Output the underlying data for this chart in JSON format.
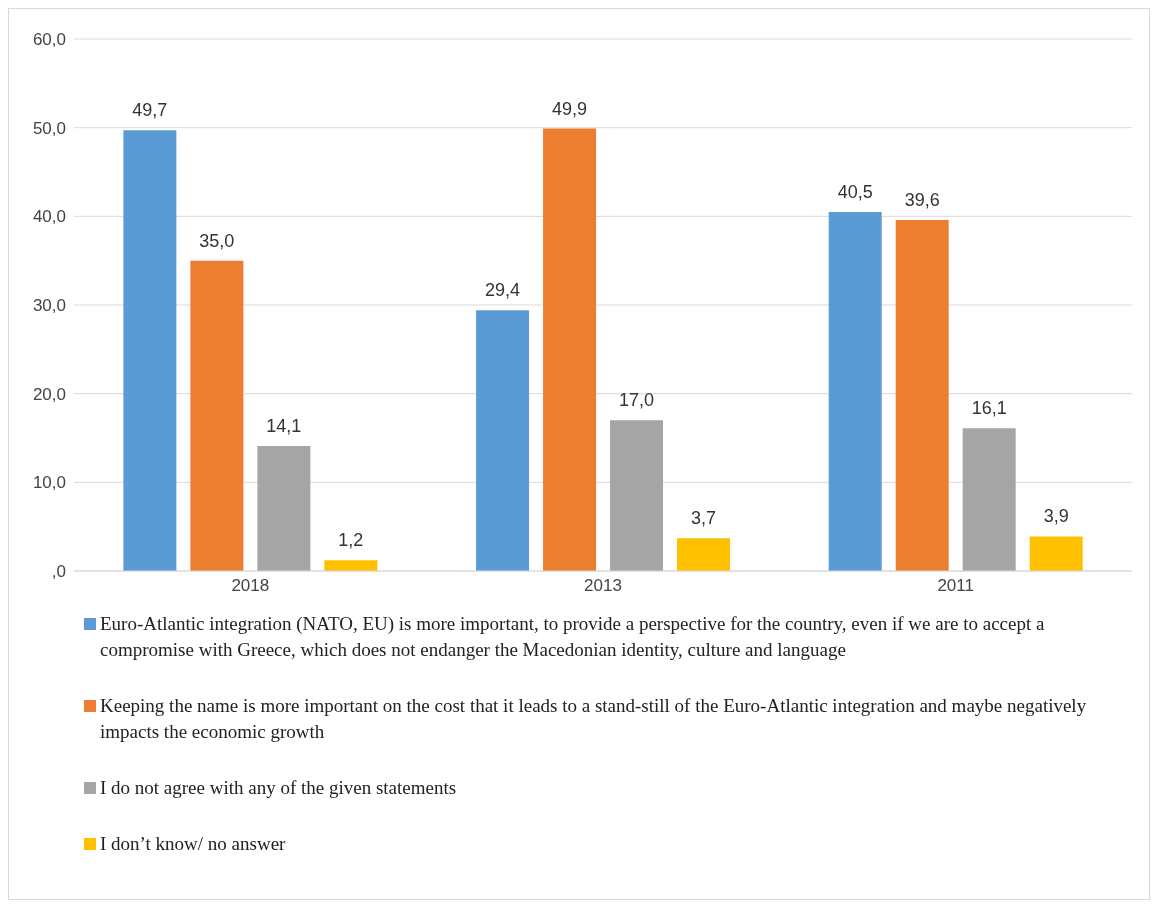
{
  "chart_data": {
    "type": "bar",
    "categories": [
      "2018",
      "2013",
      "2011"
    ],
    "series": [
      {
        "name": "Euro-Atlantic integration (NATO, EU) is more important, to provide a perspective for the country, even if we are to accept a compromise with Greece, which does not endanger the Macedonian identity, culture and language",
        "color": "#5b9bd5",
        "values": [
          49.7,
          29.4,
          40.5
        ],
        "value_labels": [
          "49,7",
          "29,4",
          "40,5"
        ]
      },
      {
        "name": "Keeping the name is more important on the cost that it leads to a stand-still of the Euro-Atlantic integration and maybe negatively impacts the economic growth",
        "color": "#ed7d31",
        "values": [
          35.0,
          49.9,
          39.6
        ],
        "value_labels": [
          "35,0",
          "49,9",
          "39,6"
        ]
      },
      {
        "name": "I do not agree with any of the given statements",
        "color": "#a5a5a5",
        "values": [
          14.1,
          17.0,
          16.1
        ],
        "value_labels": [
          "14,1",
          "17,0",
          "16,1"
        ]
      },
      {
        "name": "I don’t know/ no answer",
        "color": "#ffc000",
        "values": [
          1.2,
          3.7,
          3.9
        ],
        "value_labels": [
          "1,2",
          "3,7",
          "3,9"
        ]
      }
    ],
    "ylim": [
      0,
      60
    ],
    "yticks": [
      {
        "value": 0,
        "label": ",0"
      },
      {
        "value": 10,
        "label": "10,0"
      },
      {
        "value": 20,
        "label": "20,0"
      },
      {
        "value": 30,
        "label": "30,0"
      },
      {
        "value": 40,
        "label": "40,0"
      },
      {
        "value": 50,
        "label": "50,0"
      },
      {
        "value": 60,
        "label": "60,0"
      }
    ],
    "grid": "y",
    "legend": "bottom"
  }
}
